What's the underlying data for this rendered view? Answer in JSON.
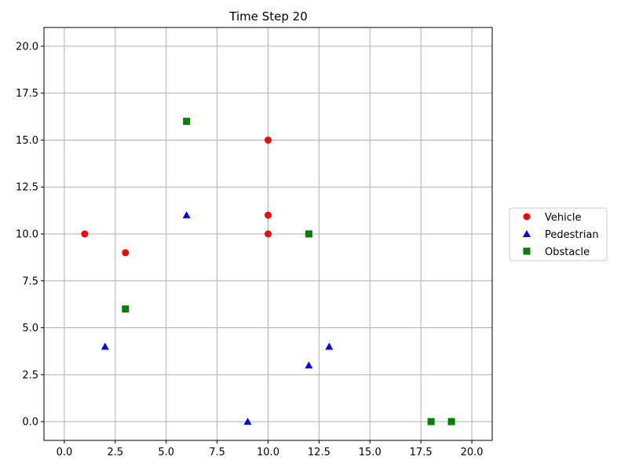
{
  "chart_data": {
    "type": "scatter",
    "title": "Time Step 20",
    "xlabel": "",
    "ylabel": "",
    "xlim": [
      -1,
      21
    ],
    "ylim": [
      -1,
      21
    ],
    "xticks": [
      0.0,
      2.5,
      5.0,
      7.5,
      10.0,
      12.5,
      15.0,
      17.5,
      20.0
    ],
    "yticks": [
      0.0,
      2.5,
      5.0,
      7.5,
      10.0,
      12.5,
      15.0,
      17.5,
      20.0
    ],
    "xtick_labels": [
      "0.0",
      "2.5",
      "5.0",
      "7.5",
      "10.0",
      "12.5",
      "15.0",
      "17.5",
      "20.0"
    ],
    "ytick_labels": [
      "0.0",
      "2.5",
      "5.0",
      "7.5",
      "10.0",
      "12.5",
      "15.0",
      "17.5",
      "20.0"
    ],
    "grid": true,
    "legend_position": "center-right, outside plot",
    "series": [
      {
        "name": "Vehicle",
        "marker": "circle",
        "color": "#ff0000",
        "points": [
          [
            1,
            10
          ],
          [
            3,
            9
          ],
          [
            10,
            15
          ],
          [
            10,
            11
          ],
          [
            10,
            10
          ]
        ]
      },
      {
        "name": "Pedestrian",
        "marker": "triangle",
        "color": "#0000ff",
        "points": [
          [
            2,
            4
          ],
          [
            6,
            11
          ],
          [
            9,
            0
          ],
          [
            12,
            3
          ],
          [
            13,
            4
          ]
        ]
      },
      {
        "name": "Obstacle",
        "marker": "square",
        "color": "#008000",
        "points": [
          [
            3,
            6
          ],
          [
            6,
            16
          ],
          [
            12,
            10
          ],
          [
            18,
            0
          ],
          [
            19,
            0
          ]
        ]
      }
    ]
  }
}
